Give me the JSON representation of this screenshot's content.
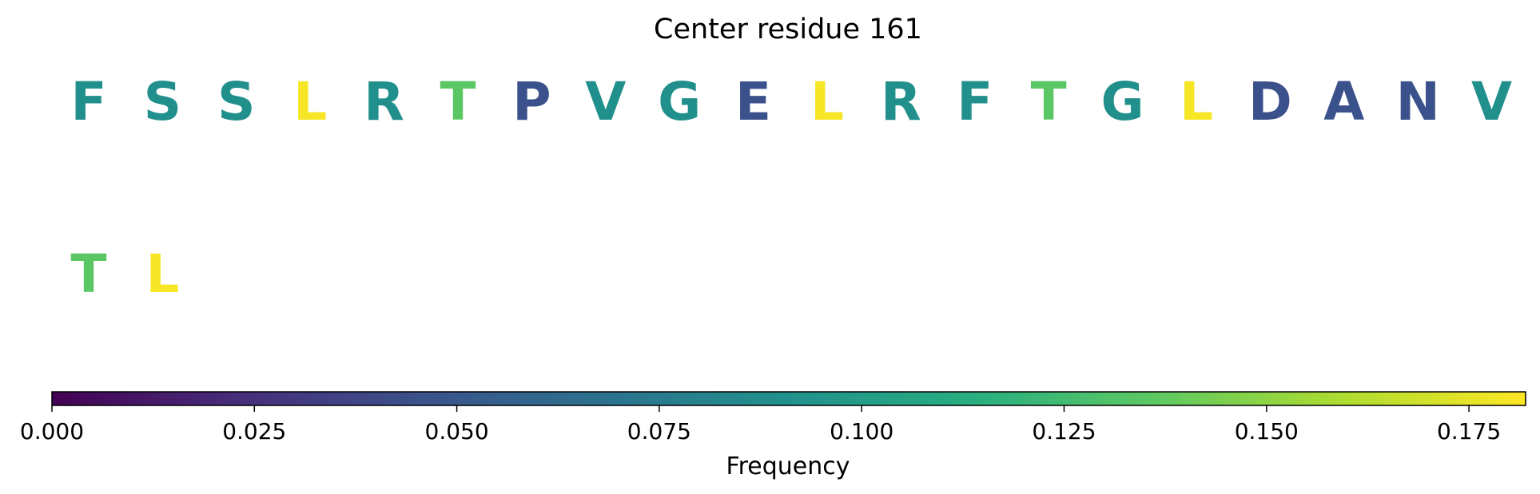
{
  "chart_data": {
    "type": "heatmap",
    "title": "Center residue 161",
    "residues": [
      {
        "letter": "F",
        "value": 0.09
      },
      {
        "letter": "S",
        "value": 0.09
      },
      {
        "letter": "S",
        "value": 0.09
      },
      {
        "letter": "L",
        "value": 0.18
      },
      {
        "letter": "R",
        "value": 0.09
      },
      {
        "letter": "T",
        "value": 0.135
      },
      {
        "letter": "P",
        "value": 0.045
      },
      {
        "letter": "V",
        "value": 0.09
      },
      {
        "letter": "G",
        "value": 0.09
      },
      {
        "letter": "E",
        "value": 0.045
      },
      {
        "letter": "L",
        "value": 0.18
      },
      {
        "letter": "R",
        "value": 0.09
      },
      {
        "letter": "F",
        "value": 0.09
      },
      {
        "letter": "T",
        "value": 0.135
      },
      {
        "letter": "G",
        "value": 0.09
      },
      {
        "letter": "L",
        "value": 0.18
      },
      {
        "letter": "D",
        "value": 0.045
      },
      {
        "letter": "A",
        "value": 0.045
      },
      {
        "letter": "N",
        "value": 0.045
      },
      {
        "letter": "V",
        "value": 0.09
      },
      {
        "letter": "T",
        "value": 0.135
      },
      {
        "letter": "L",
        "value": 0.18
      }
    ],
    "colorbar": {
      "label": "Frequency",
      "range": [
        0,
        0.182
      ],
      "ticks": [
        0.0,
        0.025,
        0.05,
        0.075,
        0.1,
        0.125,
        0.15,
        0.175
      ],
      "tick_labels": [
        "0.000",
        "0.025",
        "0.050",
        "0.075",
        "0.100",
        "0.125",
        "0.150",
        "0.175"
      ],
      "colormap": "viridis"
    }
  }
}
